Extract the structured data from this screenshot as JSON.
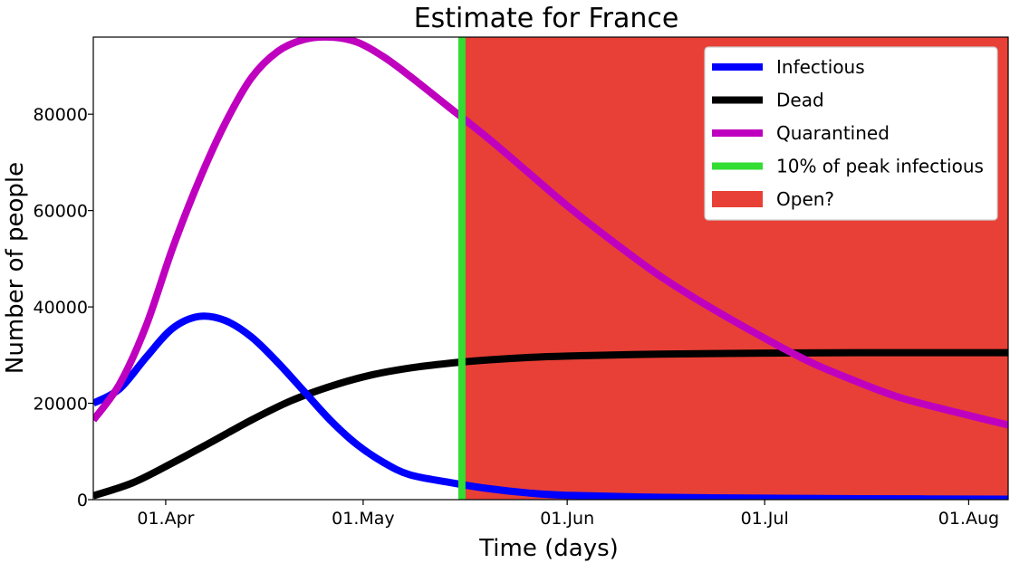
{
  "chart_data": {
    "type": "line",
    "title": "Estimate for France",
    "xlabel": "Time (days)",
    "ylabel": "Number of people",
    "x_range": [
      "2020-03-21",
      "2020-08-07"
    ],
    "ylim": [
      0,
      96000
    ],
    "x_ticks": [
      {
        "date": "2020-04-01",
        "label": "01.Apr"
      },
      {
        "date": "2020-05-01",
        "label": "01.May"
      },
      {
        "date": "2020-06-01",
        "label": "01.Jun"
      },
      {
        "date": "2020-07-01",
        "label": "01.Jul"
      },
      {
        "date": "2020-08-01",
        "label": "01.Aug"
      }
    ],
    "y_ticks": [
      0,
      20000,
      40000,
      60000,
      80000
    ],
    "grid": false,
    "legend_position": "top-right",
    "series": [
      {
        "name": "Infectious",
        "color": "#0000ff",
        "points": [
          [
            "2020-03-21",
            20000
          ],
          [
            "2020-03-25",
            23000
          ],
          [
            "2020-03-29",
            29500
          ],
          [
            "2020-04-02",
            35500
          ],
          [
            "2020-04-06",
            38000
          ],
          [
            "2020-04-10",
            37200
          ],
          [
            "2020-04-14",
            33800
          ],
          [
            "2020-04-18",
            28500
          ],
          [
            "2020-04-22",
            22500
          ],
          [
            "2020-04-26",
            16500
          ],
          [
            "2020-04-30",
            11500
          ],
          [
            "2020-05-04",
            7800
          ],
          [
            "2020-05-08",
            5200
          ],
          [
            "2020-05-14",
            3600
          ],
          [
            "2020-05-20",
            2300
          ],
          [
            "2020-05-26",
            1400
          ],
          [
            "2020-06-01",
            900
          ],
          [
            "2020-06-15",
            500
          ],
          [
            "2020-07-01",
            300
          ],
          [
            "2020-07-15",
            200
          ],
          [
            "2020-08-07",
            100
          ]
        ]
      },
      {
        "name": "Dead",
        "color": "#000000",
        "points": [
          [
            "2020-03-21",
            800
          ],
          [
            "2020-03-27",
            3500
          ],
          [
            "2020-04-02",
            7600
          ],
          [
            "2020-04-08",
            12000
          ],
          [
            "2020-04-14",
            16500
          ],
          [
            "2020-04-20",
            20500
          ],
          [
            "2020-04-26",
            23500
          ],
          [
            "2020-05-02",
            25800
          ],
          [
            "2020-05-08",
            27300
          ],
          [
            "2020-05-14",
            28300
          ],
          [
            "2020-05-20",
            29000
          ],
          [
            "2020-05-26",
            29500
          ],
          [
            "2020-06-01",
            29800
          ],
          [
            "2020-06-15",
            30200
          ],
          [
            "2020-07-01",
            30400
          ],
          [
            "2020-07-15",
            30500
          ],
          [
            "2020-08-07",
            30500
          ]
        ]
      },
      {
        "name": "Quarantined",
        "color": "#bf00bf",
        "points": [
          [
            "2020-03-21",
            16500
          ],
          [
            "2020-03-25",
            24000
          ],
          [
            "2020-03-29",
            36000
          ],
          [
            "2020-04-02",
            52000
          ],
          [
            "2020-04-06",
            66000
          ],
          [
            "2020-04-10",
            78000
          ],
          [
            "2020-04-14",
            87500
          ],
          [
            "2020-04-18",
            93000
          ],
          [
            "2020-04-22",
            95500
          ],
          [
            "2020-04-26",
            96000
          ],
          [
            "2020-04-30",
            95000
          ],
          [
            "2020-05-04",
            92000
          ],
          [
            "2020-05-08",
            88000
          ],
          [
            "2020-05-14",
            81500
          ],
          [
            "2020-05-20",
            75000
          ],
          [
            "2020-05-26",
            68000
          ],
          [
            "2020-06-01",
            61000
          ],
          [
            "2020-06-08",
            53500
          ],
          [
            "2020-06-15",
            46500
          ],
          [
            "2020-06-22",
            40500
          ],
          [
            "2020-07-01",
            33500
          ],
          [
            "2020-07-08",
            28500
          ],
          [
            "2020-07-15",
            24500
          ],
          [
            "2020-07-22",
            21000
          ],
          [
            "2020-08-01",
            17500
          ],
          [
            "2020-08-07",
            15500
          ]
        ]
      }
    ],
    "markers": [
      {
        "name": "10% of peak infectious",
        "type": "vline",
        "date": "2020-05-16",
        "color": "#33dd33"
      }
    ],
    "regions": [
      {
        "name": "Open?",
        "type": "span",
        "start": "2020-05-16",
        "end": "2020-08-07",
        "color": "#e84036"
      }
    ]
  }
}
